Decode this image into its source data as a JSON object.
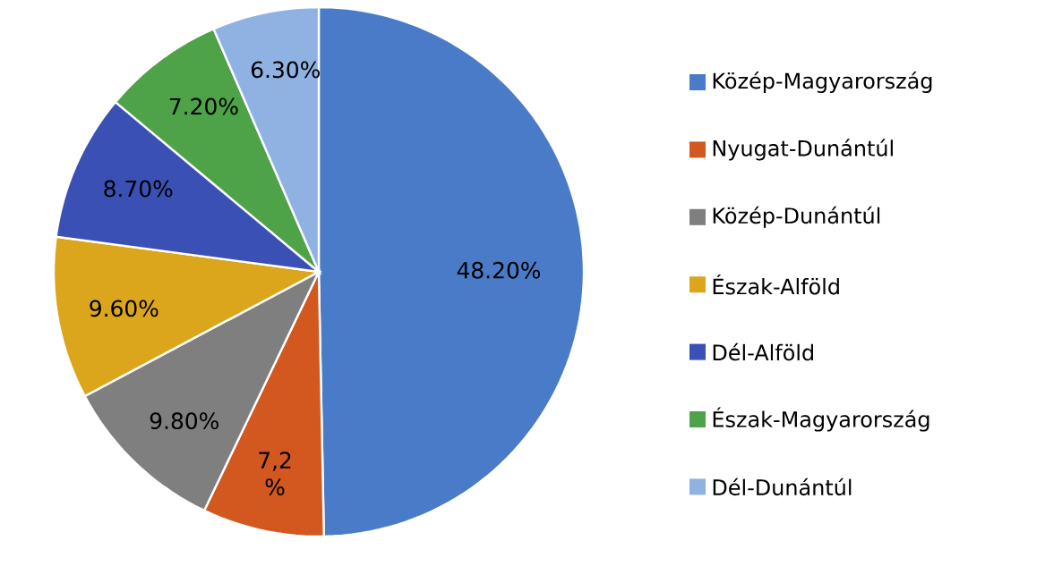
{
  "chart_data": {
    "type": "pie",
    "categories": [
      "Közép-Magyarország",
      "Nyugat-Dunántúl",
      "Közép-Dunántúl",
      "Észak-Alföld",
      "Dél-Alföld",
      "Észak-Magyarország",
      "Dél-Dunántúl"
    ],
    "values": [
      48.2,
      7.2,
      9.8,
      9.6,
      8.7,
      7.2,
      6.3
    ],
    "value_labels": [
      "48.20%",
      "7,2 %",
      "9.80%",
      "9.60%",
      "8.70%",
      "7.20%",
      "6.30%"
    ],
    "colors": [
      "#4a7bc8",
      "#d2581f",
      "#7f7f7f",
      "#dba61c",
      "#3b50b4",
      "#4ea247",
      "#8fb2e3"
    ],
    "legend": "right"
  }
}
